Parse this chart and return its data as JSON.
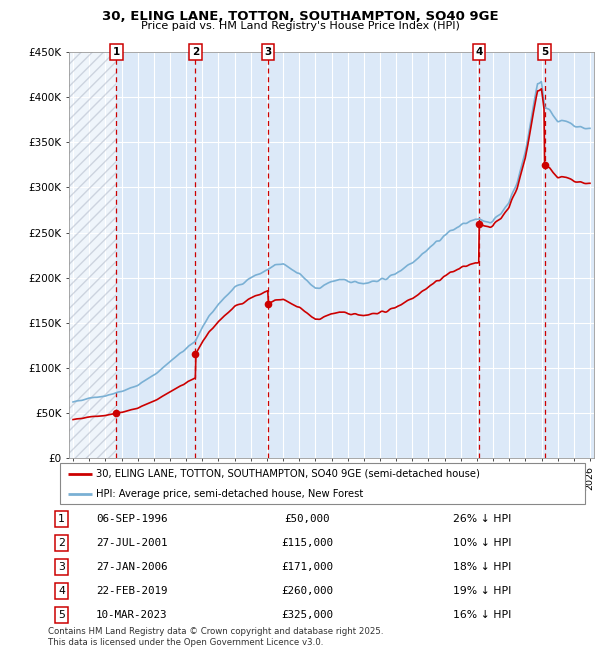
{
  "title1": "30, ELING LANE, TOTTON, SOUTHAMPTON, SO40 9GE",
  "title2": "Price paid vs. HM Land Registry's House Price Index (HPI)",
  "ylim": [
    0,
    450000
  ],
  "xlim_start": 1993.75,
  "xlim_end": 2026.25,
  "yticks": [
    0,
    50000,
    100000,
    150000,
    200000,
    250000,
    300000,
    350000,
    400000,
    450000
  ],
  "ytick_labels": [
    "£0",
    "£50K",
    "£100K",
    "£150K",
    "£200K",
    "£250K",
    "£300K",
    "£350K",
    "£400K",
    "£450K"
  ],
  "bg_color": "#dce9f8",
  "red_color": "#cc0000",
  "blue_color": "#7ab0d4",
  "grid_color": "#ffffff",
  "transactions": [
    {
      "num": 1,
      "date": "06-SEP-1996",
      "year": 1996.68,
      "price": 50000,
      "label": "06-SEP-1996",
      "price_str": "£50,000",
      "hpi_str": "26% ↓ HPI"
    },
    {
      "num": 2,
      "date": "27-JUL-2001",
      "year": 2001.57,
      "price": 115000,
      "label": "27-JUL-2001",
      "price_str": "£115,000",
      "hpi_str": "10% ↓ HPI"
    },
    {
      "num": 3,
      "date": "27-JAN-2006",
      "year": 2006.07,
      "price": 171000,
      "label": "27-JAN-2006",
      "price_str": "£171,000",
      "hpi_str": "18% ↓ HPI"
    },
    {
      "num": 4,
      "date": "22-FEB-2019",
      "year": 2019.14,
      "price": 260000,
      "label": "22-FEB-2019",
      "price_str": "£260,000",
      "hpi_str": "19% ↓ HPI"
    },
    {
      "num": 5,
      "date": "10-MAR-2023",
      "year": 2023.19,
      "price": 325000,
      "label": "10-MAR-2023",
      "price_str": "£325,000",
      "hpi_str": "16% ↓ HPI"
    }
  ],
  "legend_line1": "30, ELING LANE, TOTTON, SOUTHAMPTON, SO40 9GE (semi-detached house)",
  "legend_line2": "HPI: Average price, semi-detached house, New Forest",
  "footer": "Contains HM Land Registry data © Crown copyright and database right 2025.\nThis data is licensed under the Open Government Licence v3.0."
}
